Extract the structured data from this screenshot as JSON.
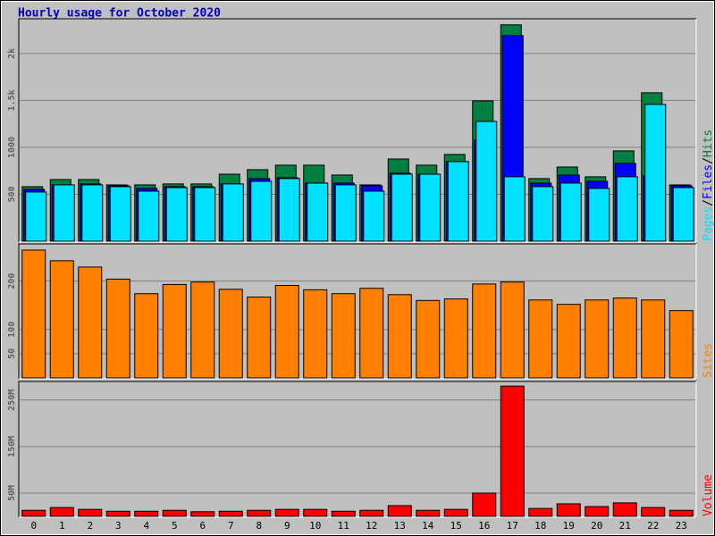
{
  "chart_data": {
    "type": "bar",
    "title": "Hourly usage for October 2020",
    "categories": [
      "0",
      "1",
      "2",
      "3",
      "4",
      "5",
      "6",
      "7",
      "8",
      "9",
      "10",
      "11",
      "12",
      "13",
      "14",
      "15",
      "16",
      "17",
      "18",
      "19",
      "20",
      "21",
      "22",
      "23"
    ],
    "legend_separator": "/",
    "grid": true,
    "panels": [
      {
        "type": "bar",
        "ylim": [
          0,
          2360
        ],
        "yticks": [
          500,
          1000,
          {
            "value": 1500,
            "label": "1.5k"
          },
          {
            "value": 2000,
            "label": "2k"
          }
        ],
        "series": [
          {
            "name": "Hits",
            "color": "#008040",
            "values": [
              581,
              657,
              657,
              600,
              600,
              610,
              610,
              714,
              762,
              810,
              810,
              705,
              600,
              876,
              810,
              924,
              1495,
              2305,
              667,
              790,
              686,
              962,
              1581,
              600
            ]
          },
          {
            "name": "Files",
            "color": "#0000ff",
            "values": [
              552,
              600,
              610,
              590,
              562,
              581,
              581,
              610,
              667,
              676,
              619,
              619,
              590,
              724,
              714,
              848,
              1076,
              2190,
              619,
              705,
              638,
              829,
              695,
              590
            ]
          },
          {
            "name": "Pages",
            "color": "#00e0ff",
            "values": [
              524,
              600,
              600,
              581,
              533,
              571,
              571,
              610,
              638,
              667,
              619,
              600,
              533,
              714,
              714,
              848,
              1276,
              686,
              581,
              619,
              562,
              686,
              1457,
              571
            ]
          }
        ]
      },
      {
        "type": "bar",
        "ylim": [
          0,
          275
        ],
        "yticks": [
          50,
          100,
          200
        ],
        "series": [
          {
            "name": "Sites",
            "color": "#ff8000",
            "values": [
              264,
              242,
              229,
              204,
              174,
              193,
              198,
              183,
              167,
              191,
              182,
              174,
              185,
              172,
              160,
              163,
              194,
              198,
              161,
              152,
              161,
              165,
              161,
              139
            ]
          }
        ]
      },
      {
        "type": "bar",
        "ylim": [
          0,
          288
        ],
        "yticks": [
          {
            "value": 50,
            "label": "50M"
          },
          {
            "value": 150,
            "label": "150M"
          },
          {
            "value": 250,
            "label": "250M"
          }
        ],
        "series": [
          {
            "name": "Volume",
            "color": "#ff0000",
            "values": [
              13,
              19,
              15,
              11,
              11,
              13,
              10,
              11,
              13,
              15,
              15,
              11,
              13,
              23,
              13,
              15,
              50,
              280,
              17,
              27,
              21,
              29,
              19,
              13
            ]
          }
        ]
      }
    ]
  }
}
